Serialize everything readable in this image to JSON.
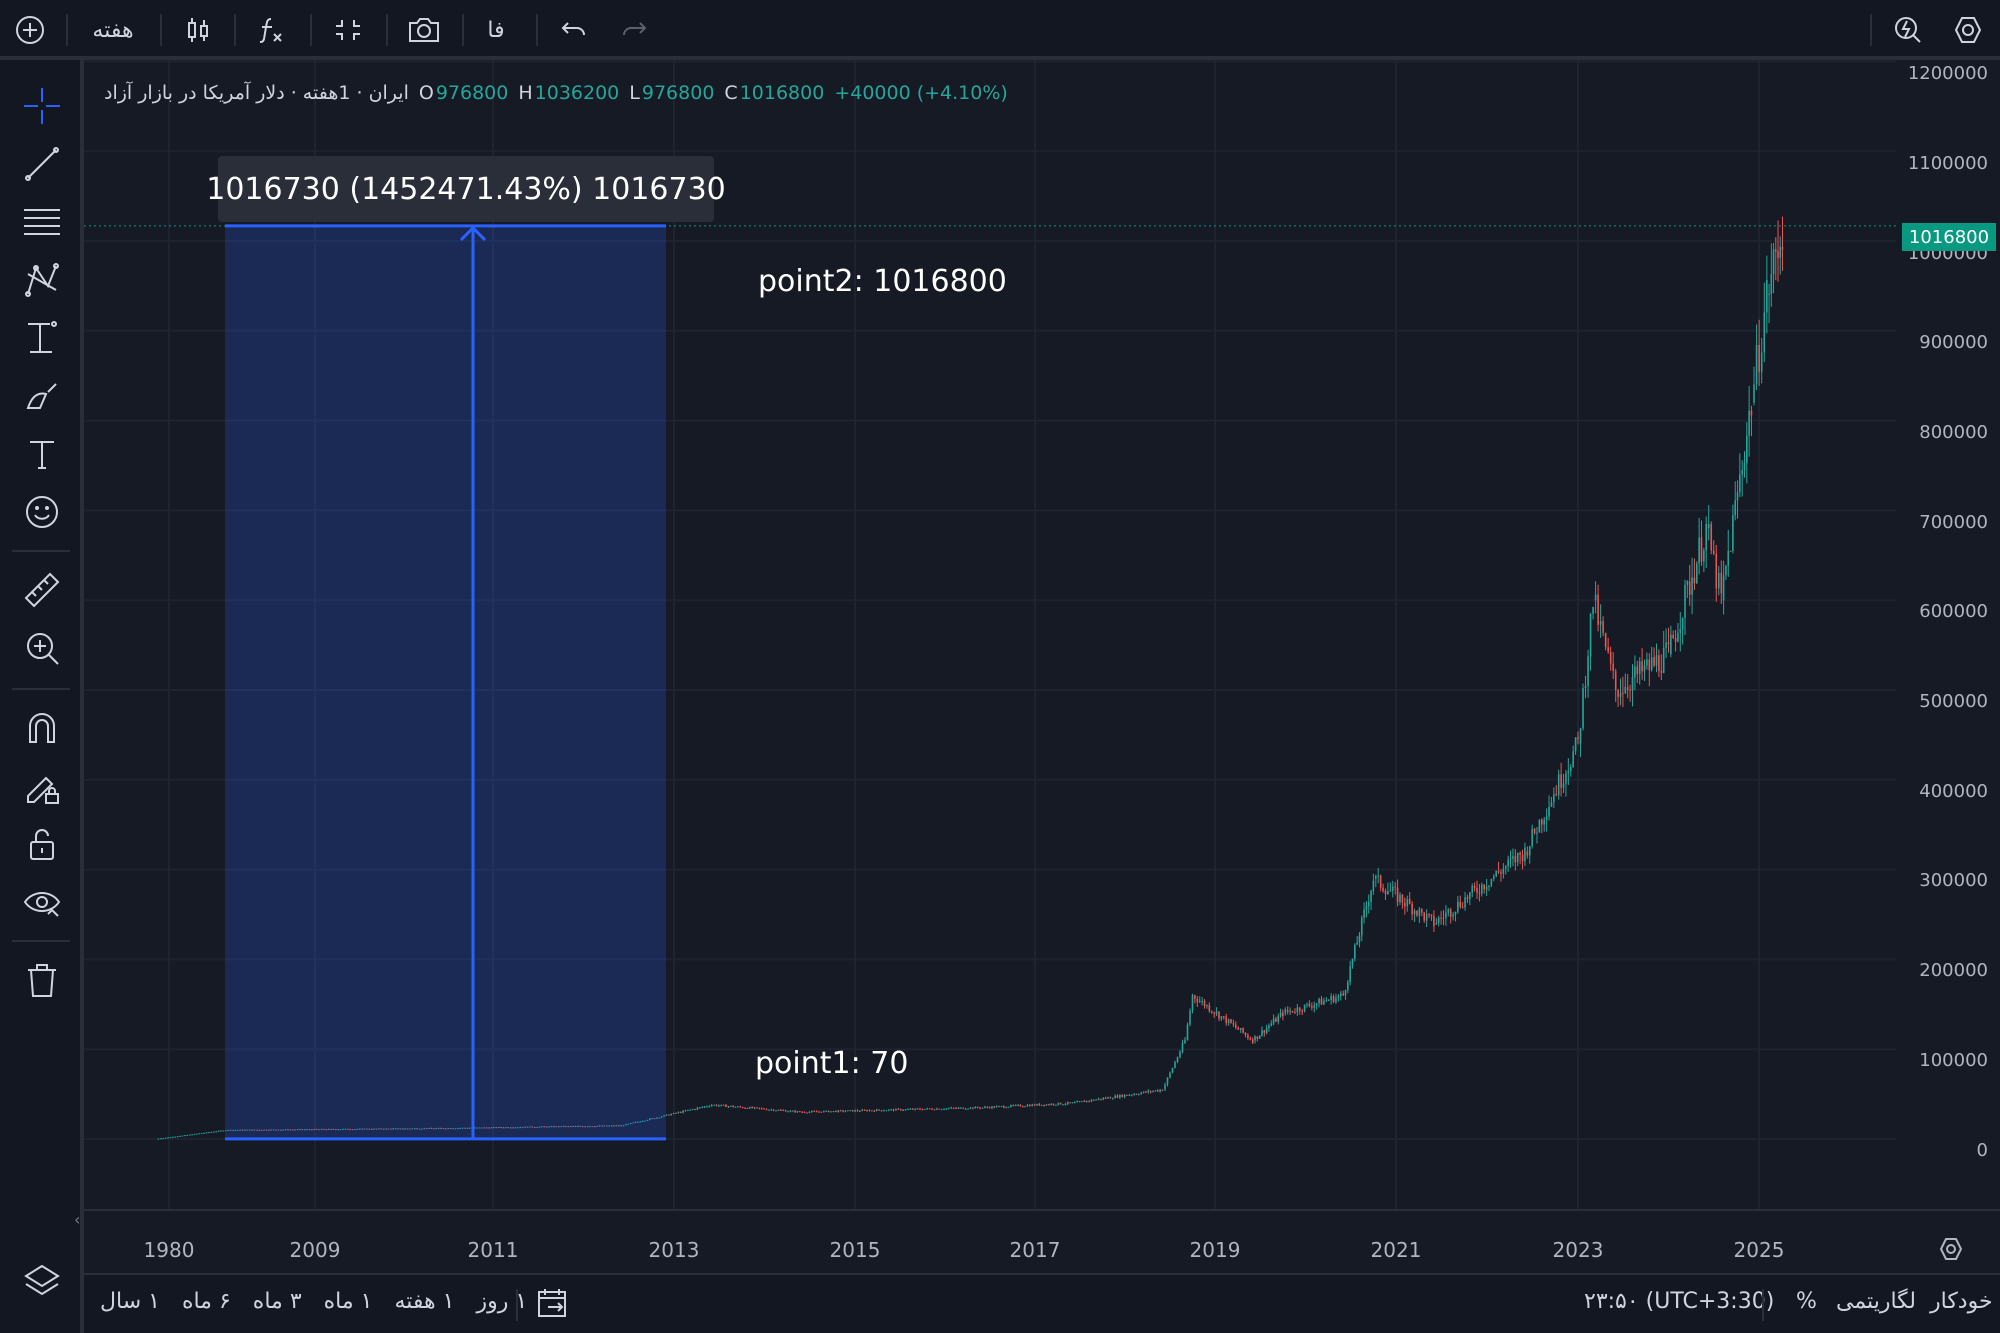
{
  "toolbar": {
    "interval_label": "هفته",
    "lang_label": "فا",
    "icons": [
      "plus-circle-icon",
      "candles-icon",
      "fx-icon",
      "compare-icon",
      "camera-icon",
      "undo-icon",
      "redo-icon",
      "quick-search-icon",
      "settings-icon"
    ]
  },
  "legend": {
    "title": "ایران · 1هفته · دلار آمریکا در بازار آزاد",
    "o_label": "O",
    "o_value": "976800",
    "h_label": "H",
    "h_value": "1036200",
    "l_label": "L",
    "l_value": "976800",
    "c_label": "C",
    "c_value": "1016800",
    "change": "+40000 (+4.10%)"
  },
  "measure": {
    "box_text": "1016730 (1452471.43%) 1016730",
    "point2": "point2: 1016800",
    "point1": "point1: 70"
  },
  "price_scale": {
    "labels": [
      "1200000",
      "1100000",
      "1000000",
      "900000",
      "800000",
      "700000",
      "600000",
      "500000",
      "400000",
      "300000",
      "200000",
      "100000",
      "0"
    ],
    "last_price": "1016800"
  },
  "time_scale": {
    "labels": [
      "1980",
      "2009",
      "2011",
      "2013",
      "2015",
      "2017",
      "2019",
      "2021",
      "2023",
      "2025"
    ]
  },
  "bottom": {
    "ranges": [
      "۱ روز",
      "۱ هفته",
      "۱ ماه",
      "۳ ماه",
      "۶ ماه",
      "۱ سال"
    ],
    "clock": "۲۳:۵۰ (UTC+3:30)",
    "percent": "%",
    "log": "لگاریتمی",
    "auto": "خودکار"
  },
  "colors": {
    "up": "#26a69a",
    "down": "#ef5350",
    "measure": "#2962ff",
    "last_price_bg": "#089981"
  },
  "chart_data": {
    "type": "candlestick",
    "title": "",
    "xlabel": "",
    "ylabel": "",
    "ylim": [
      0,
      1200000
    ],
    "x_ticks": [
      "1980",
      "2009",
      "2011",
      "2013",
      "2015",
      "2017",
      "2019",
      "2021",
      "2023",
      "2025"
    ],
    "y_ticks": [
      0,
      100000,
      200000,
      300000,
      400000,
      500000,
      600000,
      700000,
      800000,
      900000,
      1000000,
      1100000,
      1200000
    ],
    "series": [
      {
        "x": [
          "1980",
          "2008-06",
          "2010-06",
          "2012-06",
          "2013-06",
          "2014-06",
          "2016-06",
          "2017-06",
          "2018-06",
          "2018-09",
          "2018-10",
          "2019-06",
          "2019-10",
          "2020-06",
          "2020-10",
          "2021-06",
          "2022-06",
          "2023-01",
          "2023-03",
          "2023-06",
          "2024-01",
          "2024-06",
          "2024-08",
          "2024-12",
          "2025-02",
          "2025-04"
        ],
        "close": [
          70,
          10000,
          12000,
          15000,
          38000,
          30000,
          35000,
          40000,
          55000,
          110000,
          160000,
          110000,
          140000,
          160000,
          290000,
          240000,
          320000,
          440000,
          600000,
          500000,
          540000,
          680000,
          600000,
          820000,
          940000,
          1016800
        ]
      }
    ]
  }
}
